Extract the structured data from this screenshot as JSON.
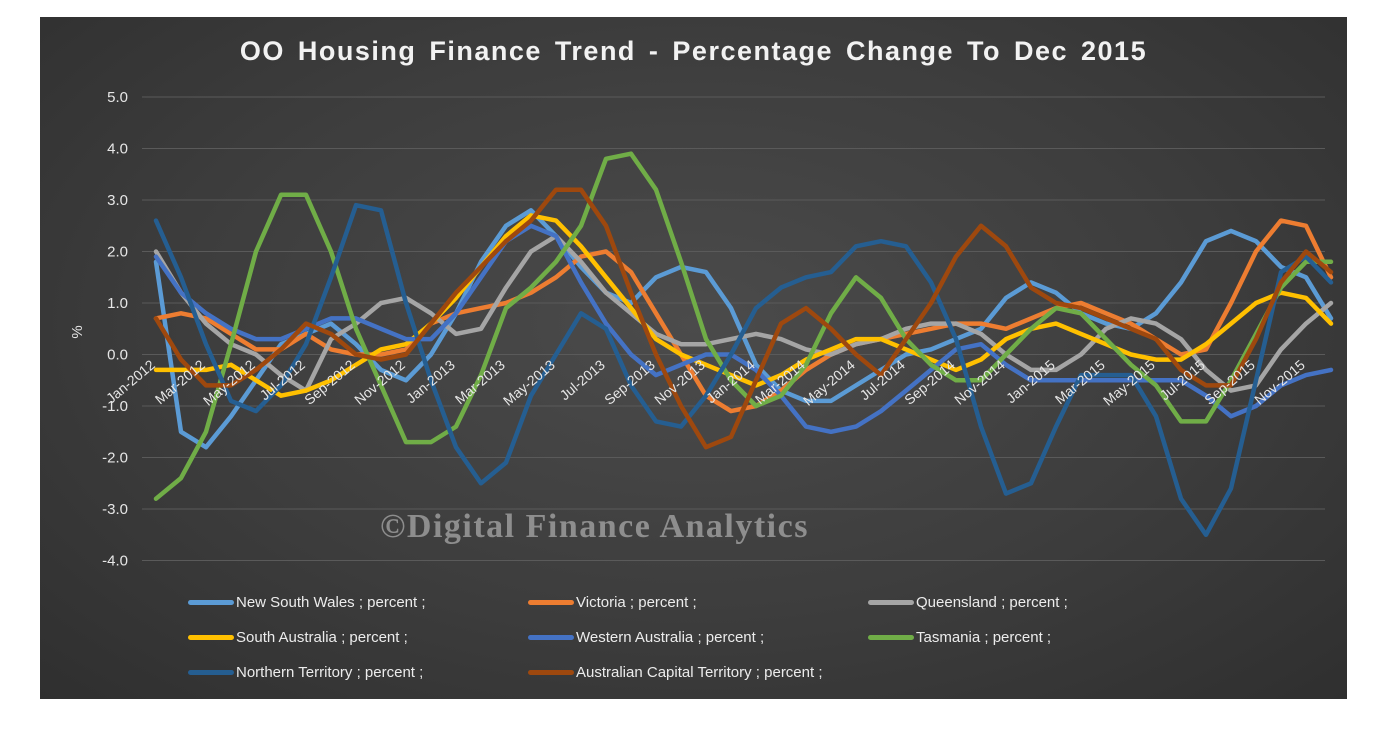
{
  "chart_data": {
    "type": "line",
    "title": "OO Housing Finance Trend - Percentage Change To Dec 2015",
    "ylabel": "%",
    "ylim": [
      -4.0,
      5.0
    ],
    "yticks": [
      "5.0",
      "4.0",
      "3.0",
      "2.0",
      "1.0",
      "0.0",
      "-1.0",
      "-2.0",
      "-3.0",
      "-4.0"
    ],
    "tick_labels": [
      "Jan-2012",
      "Mar-2012",
      "May-2012",
      "Jul-2012",
      "Sep-2012",
      "Nov-2012",
      "Jan-2013",
      "Mar-2013",
      "May-2013",
      "Jul-2013",
      "Sep-2013",
      "Nov-2013",
      "Jan-2014",
      "Mar-2014",
      "May-2014",
      "Jul-2014",
      "Sep-2014",
      "Nov-2014",
      "Jan-2015",
      "Mar-2015",
      "May-2015",
      "Jul-2015",
      "Sep-2015",
      "Nov-2015"
    ],
    "x": [
      "Jan-2012",
      "Feb-2012",
      "Mar-2012",
      "Apr-2012",
      "May-2012",
      "Jun-2012",
      "Jul-2012",
      "Aug-2012",
      "Sep-2012",
      "Oct-2012",
      "Nov-2012",
      "Dec-2012",
      "Jan-2013",
      "Feb-2013",
      "Mar-2013",
      "Apr-2013",
      "May-2013",
      "Jun-2013",
      "Jul-2013",
      "Aug-2013",
      "Sep-2013",
      "Oct-2013",
      "Nov-2013",
      "Dec-2013",
      "Jan-2014",
      "Feb-2014",
      "Mar-2014",
      "Apr-2014",
      "May-2014",
      "Jun-2014",
      "Jul-2014",
      "Aug-2014",
      "Sep-2014",
      "Oct-2014",
      "Nov-2014",
      "Dec-2014",
      "Jan-2015",
      "Feb-2015",
      "Mar-2015",
      "Apr-2015",
      "May-2015",
      "Jun-2015",
      "Jul-2015",
      "Aug-2015",
      "Sep-2015",
      "Oct-2015",
      "Nov-2015",
      "Dec-2015"
    ],
    "grid": true,
    "legend_position": "bottom",
    "series": [
      {
        "name": "New South Wales ; percent ;",
        "color": "#5b9bd5",
        "values": [
          1.8,
          -1.5,
          -1.8,
          -1.2,
          -0.5,
          0.2,
          0.4,
          0.6,
          0.2,
          -0.3,
          -0.5,
          0.0,
          0.8,
          1.8,
          2.5,
          2.8,
          2.3,
          1.7,
          1.2,
          1.0,
          1.5,
          1.7,
          1.6,
          0.9,
          -0.2,
          -0.7,
          -0.9,
          -0.9,
          -0.6,
          -0.3,
          0.0,
          0.1,
          0.3,
          0.5,
          1.1,
          1.4,
          1.2,
          0.8,
          0.6,
          0.5,
          0.8,
          1.4,
          2.2,
          2.4,
          2.2,
          1.7,
          1.5,
          0.7
        ]
      },
      {
        "name": "Victoria ; percent ;",
        "color": "#ed7d31",
        "values": [
          0.7,
          0.8,
          0.7,
          0.4,
          0.1,
          0.1,
          0.4,
          0.1,
          0.0,
          0.0,
          0.1,
          0.6,
          0.8,
          0.9,
          1.0,
          1.2,
          1.5,
          1.9,
          2.0,
          1.6,
          0.8,
          0.0,
          -0.8,
          -1.1,
          -1.0,
          -0.7,
          -0.3,
          0.0,
          0.2,
          0.3,
          0.4,
          0.5,
          0.6,
          0.6,
          0.5,
          0.7,
          0.9,
          1.0,
          0.8,
          0.6,
          0.3,
          0.0,
          0.1,
          1.0,
          2.0,
          2.6,
          2.5,
          1.5
        ]
      },
      {
        "name": "Queensland ; percent ;",
        "color": "#a5a5a5",
        "values": [
          2.0,
          1.2,
          0.6,
          0.2,
          0.0,
          -0.4,
          -0.7,
          0.3,
          0.6,
          1.0,
          1.1,
          0.8,
          0.4,
          0.5,
          1.3,
          2.0,
          2.3,
          1.8,
          1.2,
          0.8,
          0.4,
          0.2,
          0.2,
          0.3,
          0.4,
          0.3,
          0.1,
          0.0,
          0.2,
          0.3,
          0.5,
          0.6,
          0.6,
          0.4,
          0.0,
          -0.3,
          -0.3,
          0.0,
          0.5,
          0.7,
          0.6,
          0.3,
          -0.3,
          -0.7,
          -0.6,
          0.1,
          0.6,
          1.0
        ]
      },
      {
        "name": "South Australia ; percent ;",
        "color": "#ffc000",
        "values": [
          -0.3,
          -0.3,
          -0.3,
          -0.2,
          -0.5,
          -0.8,
          -0.7,
          -0.5,
          -0.2,
          0.1,
          0.2,
          0.6,
          1.1,
          1.7,
          2.3,
          2.7,
          2.6,
          2.1,
          1.5,
          0.9,
          0.3,
          0.0,
          -0.2,
          -0.4,
          -0.6,
          -0.4,
          -0.1,
          0.1,
          0.3,
          0.3,
          0.1,
          -0.1,
          -0.3,
          -0.1,
          0.3,
          0.5,
          0.6,
          0.4,
          0.2,
          0.0,
          -0.1,
          -0.1,
          0.2,
          0.6,
          1.0,
          1.2,
          1.1,
          0.6
        ]
      },
      {
        "name": "Western Australia ; percent ;",
        "color": "#4472c4",
        "values": [
          1.9,
          1.2,
          0.8,
          0.5,
          0.3,
          0.3,
          0.5,
          0.7,
          0.7,
          0.5,
          0.3,
          0.3,
          0.8,
          1.5,
          2.2,
          2.5,
          2.3,
          1.4,
          0.6,
          0.0,
          -0.4,
          -0.2,
          0.0,
          0.0,
          -0.3,
          -0.8,
          -1.4,
          -1.5,
          -1.4,
          -1.1,
          -0.7,
          -0.3,
          0.1,
          0.2,
          -0.2,
          -0.5,
          -0.5,
          -0.5,
          -0.5,
          -0.5,
          -0.5,
          -0.5,
          -0.8,
          -1.2,
          -1.0,
          -0.6,
          -0.4,
          -0.3
        ]
      },
      {
        "name": "Tasmania ; percent ;",
        "color": "#70ad47",
        "values": [
          -2.8,
          -2.4,
          -1.5,
          0.2,
          2.0,
          3.1,
          3.1,
          2.0,
          0.5,
          -0.6,
          -1.7,
          -1.7,
          -1.4,
          -0.4,
          0.9,
          1.3,
          1.8,
          2.5,
          3.8,
          3.9,
          3.2,
          1.8,
          0.3,
          -0.5,
          -1.0,
          -0.8,
          -0.2,
          0.8,
          1.5,
          1.1,
          0.3,
          -0.2,
          -0.5,
          -0.5,
          0.0,
          0.5,
          0.9,
          0.8,
          0.3,
          -0.2,
          -0.6,
          -1.3,
          -1.3,
          -0.5,
          0.4,
          1.3,
          1.8,
          1.8
        ]
      },
      {
        "name": "Northern Territory ; percent ;",
        "color": "#255e91",
        "values": [
          2.6,
          1.5,
          0.2,
          -0.9,
          -1.1,
          -0.6,
          0.2,
          1.5,
          2.9,
          2.8,
          1.0,
          -0.5,
          -1.8,
          -2.5,
          -2.1,
          -0.8,
          0.0,
          0.8,
          0.5,
          -0.6,
          -1.3,
          -1.4,
          -0.8,
          0.0,
          0.9,
          1.3,
          1.5,
          1.6,
          2.1,
          2.2,
          2.1,
          1.4,
          0.3,
          -1.4,
          -2.7,
          -2.5,
          -1.4,
          -0.4,
          -0.4,
          -0.4,
          -1.2,
          -2.8,
          -3.5,
          -2.6,
          -0.5,
          1.6,
          1.9,
          1.4
        ]
      },
      {
        "name": "Australian Capital Territory ; percent ;",
        "color": "#9e480e",
        "values": [
          0.7,
          -0.1,
          -0.6,
          -0.6,
          -0.3,
          0.1,
          0.6,
          0.4,
          0.0,
          -0.1,
          0.0,
          0.6,
          1.2,
          1.7,
          2.2,
          2.6,
          3.2,
          3.2,
          2.5,
          1.2,
          0.0,
          -1.0,
          -1.8,
          -1.6,
          -0.5,
          0.6,
          0.9,
          0.5,
          0.0,
          -0.4,
          0.3,
          1.0,
          1.9,
          2.5,
          2.1,
          1.3,
          1.0,
          0.9,
          0.7,
          0.5,
          0.3,
          -0.3,
          -0.6,
          -0.6,
          0.3,
          1.4,
          2.0,
          1.6
        ]
      }
    ],
    "watermark": "©Digital Finance Analytics"
  }
}
